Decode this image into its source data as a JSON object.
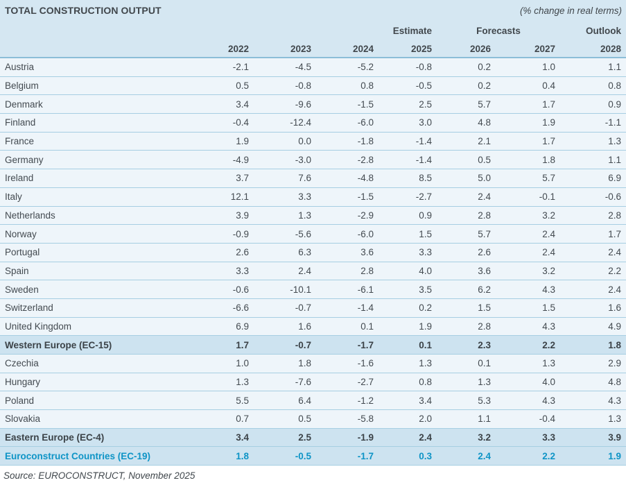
{
  "chart_data": {
    "type": "table",
    "title": "TOTAL CONSTRUCTION OUTPUT",
    "unit_note": "(% change in real terms)",
    "column_groups": [
      {
        "label": "Estimate",
        "span_years": [
          "2025"
        ]
      },
      {
        "label": "Forecasts",
        "span_years": [
          "2026",
          "2027"
        ]
      },
      {
        "label": "Outlook",
        "span_years": [
          "2028"
        ]
      }
    ],
    "years": [
      "2022",
      "2023",
      "2024",
      "2025",
      "2026",
      "2027",
      "2028"
    ],
    "rows": [
      {
        "label": "Austria",
        "style": "country",
        "values": [
          "-2.1",
          "-4.5",
          "-5.2",
          "-0.8",
          "0.2",
          "1.0",
          "1.1"
        ]
      },
      {
        "label": "Belgium",
        "style": "country",
        "values": [
          "0.5",
          "-0.8",
          "0.8",
          "-0.5",
          "0.2",
          "0.4",
          "0.8"
        ]
      },
      {
        "label": "Denmark",
        "style": "country",
        "values": [
          "3.4",
          "-9.6",
          "-1.5",
          "2.5",
          "5.7",
          "1.7",
          "0.9"
        ]
      },
      {
        "label": "Finland",
        "style": "country",
        "values": [
          "-0.4",
          "-12.4",
          "-6.0",
          "3.0",
          "4.8",
          "1.9",
          "-1.1"
        ]
      },
      {
        "label": "France",
        "style": "country",
        "values": [
          "1.9",
          "0.0",
          "-1.8",
          "-1.4",
          "2.1",
          "1.7",
          "1.3"
        ]
      },
      {
        "label": "Germany",
        "style": "country",
        "values": [
          "-4.9",
          "-3.0",
          "-2.8",
          "-1.4",
          "0.5",
          "1.8",
          "1.1"
        ]
      },
      {
        "label": "Ireland",
        "style": "country",
        "values": [
          "3.7",
          "7.6",
          "-4.8",
          "8.5",
          "5.0",
          "5.7",
          "6.9"
        ]
      },
      {
        "label": "Italy",
        "style": "country",
        "values": [
          "12.1",
          "3.3",
          "-1.5",
          "-2.7",
          "2.4",
          "-0.1",
          "-0.6"
        ]
      },
      {
        "label": "Netherlands",
        "style": "country",
        "values": [
          "3.9",
          "1.3",
          "-2.9",
          "0.9",
          "2.8",
          "3.2",
          "2.8"
        ]
      },
      {
        "label": "Norway",
        "style": "country",
        "values": [
          "-0.9",
          "-5.6",
          "-6.0",
          "1.5",
          "5.7",
          "2.4",
          "1.7"
        ]
      },
      {
        "label": "Portugal",
        "style": "country",
        "values": [
          "2.6",
          "6.3",
          "3.6",
          "3.3",
          "2.6",
          "2.4",
          "2.4"
        ]
      },
      {
        "label": "Spain",
        "style": "country",
        "values": [
          "3.3",
          "2.4",
          "2.8",
          "4.0",
          "3.6",
          "3.2",
          "2.2"
        ]
      },
      {
        "label": "Sweden",
        "style": "country",
        "values": [
          "-0.6",
          "-10.1",
          "-6.1",
          "3.5",
          "6.2",
          "4.3",
          "2.4"
        ]
      },
      {
        "label": "Switzerland",
        "style": "country",
        "values": [
          "-6.6",
          "-0.7",
          "-1.4",
          "0.2",
          "1.5",
          "1.5",
          "1.6"
        ]
      },
      {
        "label": "United Kingdom",
        "style": "country",
        "values": [
          "6.9",
          "1.6",
          "0.1",
          "1.9",
          "2.8",
          "4.3",
          "4.9"
        ]
      },
      {
        "label": "Western Europe (EC-15)",
        "style": "summary",
        "values": [
          "1.7",
          "-0.7",
          "-1.7",
          "0.1",
          "2.3",
          "2.2",
          "1.8"
        ]
      },
      {
        "label": "Czechia",
        "style": "country",
        "values": [
          "1.0",
          "1.8",
          "-1.6",
          "1.3",
          "0.1",
          "1.3",
          "2.9"
        ]
      },
      {
        "label": "Hungary",
        "style": "country",
        "values": [
          "1.3",
          "-7.6",
          "-2.7",
          "0.8",
          "1.3",
          "4.0",
          "4.8"
        ]
      },
      {
        "label": "Poland",
        "style": "country",
        "values": [
          "5.5",
          "6.4",
          "-1.2",
          "3.4",
          "5.3",
          "4.3",
          "4.3"
        ]
      },
      {
        "label": "Slovakia",
        "style": "country",
        "values": [
          "0.7",
          "0.5",
          "-5.8",
          "2.0",
          "1.1",
          "-0.4",
          "1.3"
        ]
      },
      {
        "label": "Eastern Europe (EC-4)",
        "style": "summary",
        "values": [
          "3.4",
          "2.5",
          "-1.9",
          "2.4",
          "3.2",
          "3.3",
          "3.9"
        ]
      },
      {
        "label": "Euroconstruct Countries (EC-19)",
        "style": "total",
        "values": [
          "1.8",
          "-0.5",
          "-1.7",
          "0.3",
          "2.4",
          "2.2",
          "1.9"
        ]
      }
    ],
    "source": "Source: EUROCONSTRUCT, November 2025",
    "colors": {
      "header_bg": "#d5e7f2",
      "row_bg": "#eef5fa",
      "summary_row_bg": "#cde3f0",
      "grid_line": "#a6cee2",
      "header_rule": "#8cbed8",
      "text": "#434a50",
      "accent_teal": "#0e94c6"
    }
  }
}
